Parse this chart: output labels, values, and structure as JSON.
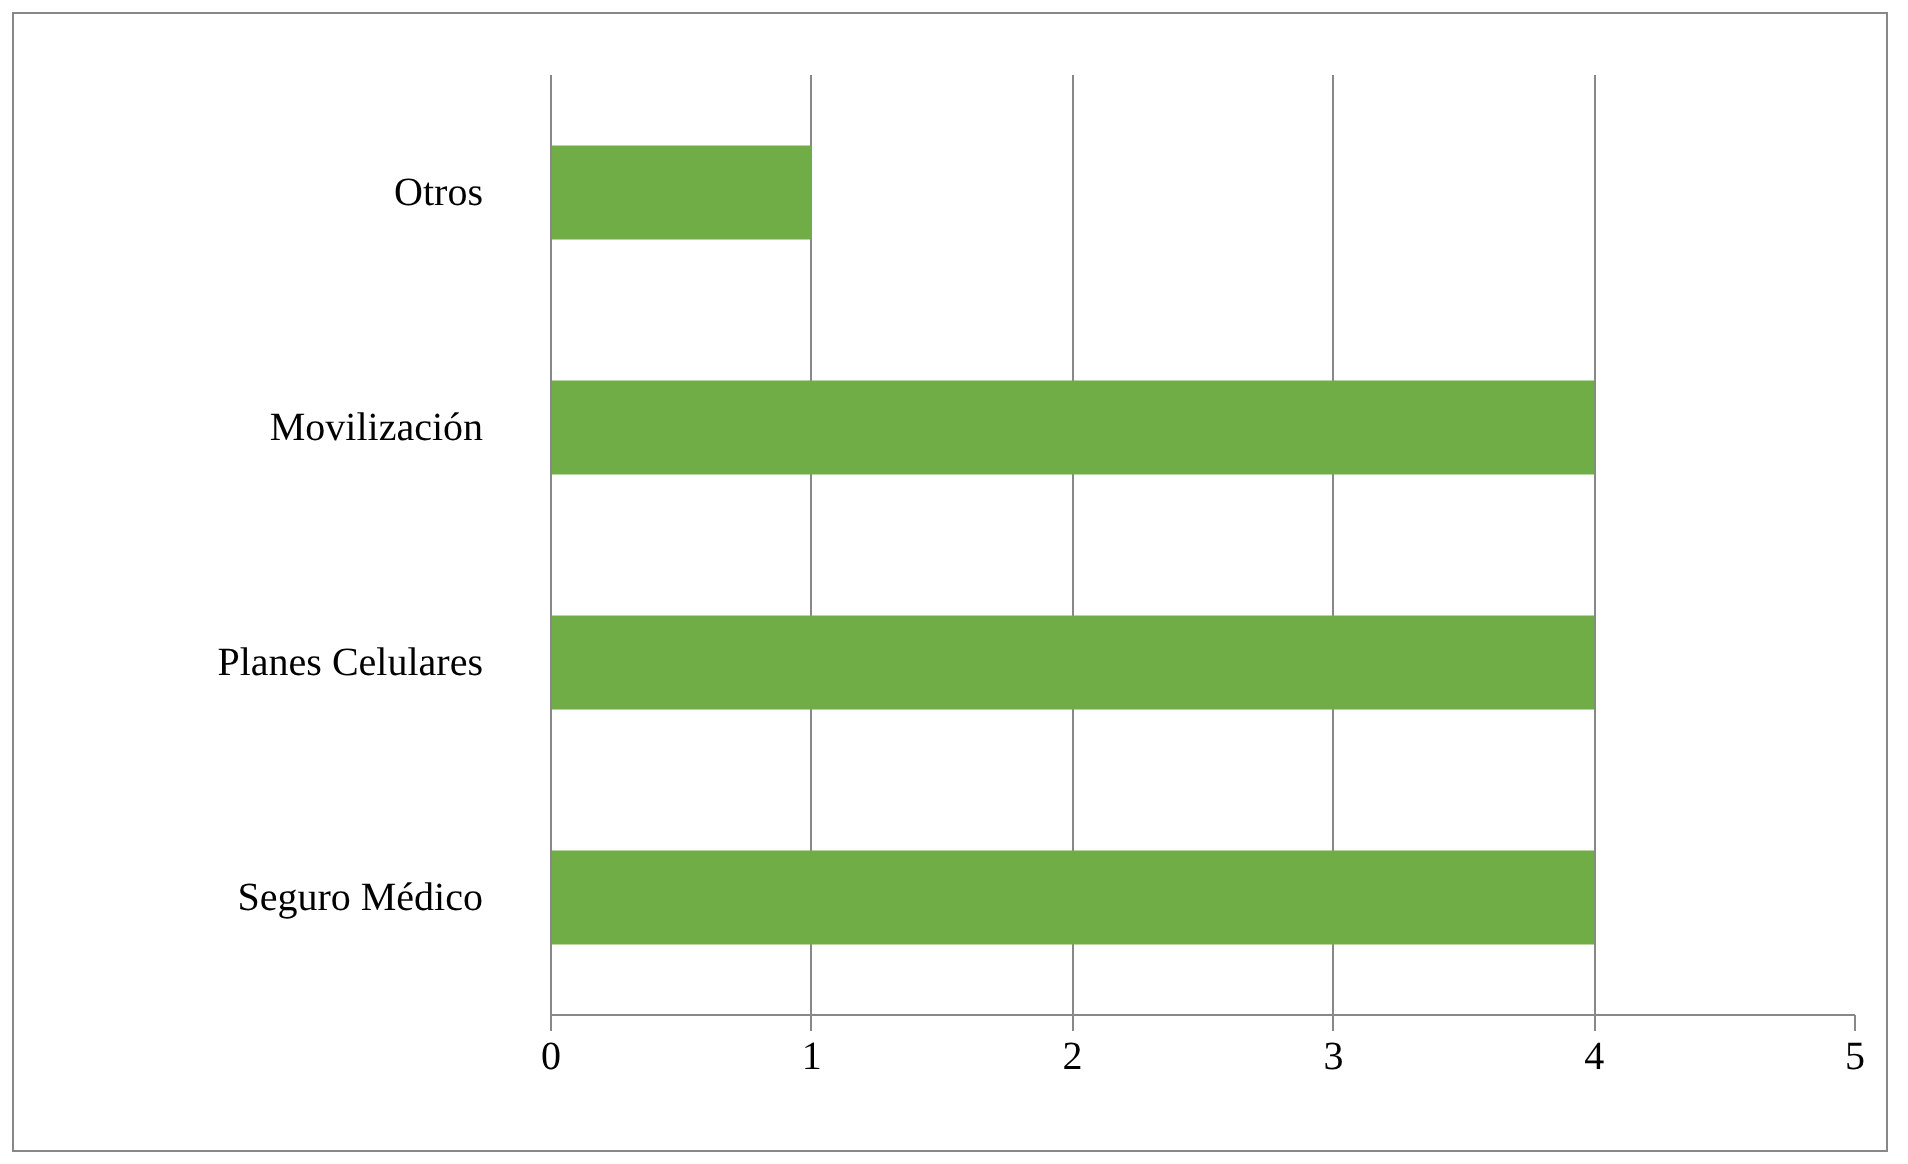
{
  "chart_data": {
    "type": "bar",
    "orientation": "horizontal",
    "categories": [
      "Otros",
      "Movilización",
      "Planes Celulares",
      "Seguro Médico"
    ],
    "values": [
      1,
      4,
      4,
      4
    ],
    "color": "#70ad47",
    "xlim": [
      0,
      5
    ],
    "xticks": [
      0,
      1,
      2,
      3,
      4,
      5
    ],
    "grid": "x"
  }
}
